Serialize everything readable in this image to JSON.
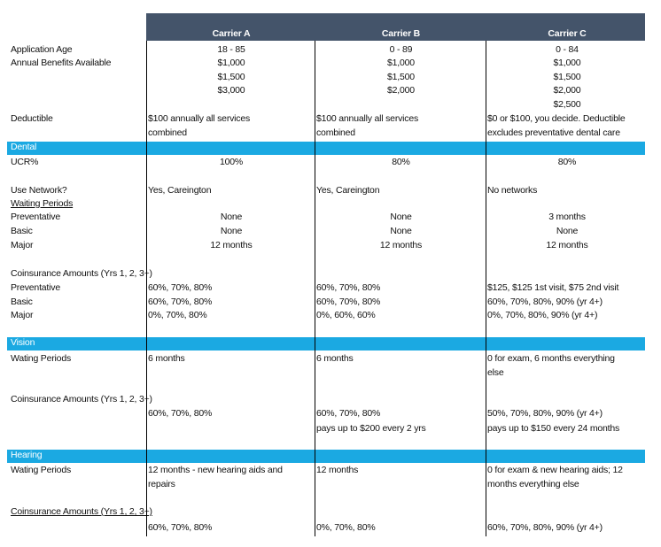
{
  "header": {
    "columns": [
      "Carrier A",
      "Carrier B",
      "Carrier C"
    ]
  },
  "rows": [
    {
      "label": "Application Age",
      "cells": [
        "18 - 85",
        "0 - 89",
        "0 - 84"
      ]
    },
    {
      "label": "Annual Benefits Available",
      "cells": [
        "$1,000",
        "$1,000",
        "$1,000"
      ]
    },
    {
      "cells": [
        "$1,500",
        "$1,500",
        "$1,500"
      ]
    },
    {
      "cells": [
        "$3,000",
        "$2,000",
        "$2,000"
      ]
    },
    {
      "cells": [
        null,
        null,
        "$2,500"
      ]
    },
    {
      "label": "Deductible",
      "cells": [
        [
          "$100 annually all services",
          "combined"
        ],
        [
          "$100 annually all services",
          "combined"
        ],
        [
          "$0 or $100, you decide. Deductible",
          "excludes preventative dental care"
        ]
      ]
    },
    {
      "section": "Dental"
    },
    {
      "label": "UCR%",
      "cells": [
        "100%",
        "80%",
        "80%"
      ]
    },
    {
      "label": "Use Network?",
      "cells": [
        "Yes, Careington",
        "Yes, Careington",
        "No networks"
      ]
    },
    {
      "label": "Waiting Periods",
      "underline": true
    },
    {
      "label": "Preventative",
      "cells": [
        "None",
        "None",
        "3 months"
      ]
    },
    {
      "label": "Basic",
      "cells": [
        "None",
        "None",
        "None"
      ]
    },
    {
      "label": "Major",
      "cells": [
        "12 months",
        "12 months",
        "12 months"
      ]
    },
    {
      "label": "Coinsurance Amounts (Yrs 1, 2, 3+)"
    },
    {
      "label": "Preventative",
      "cells": [
        "60%, 70%, 80%",
        "60%, 70%, 80%",
        "$125, $125 1st visit, $75 2nd visit"
      ]
    },
    {
      "label": "Basic",
      "cells": [
        "60%, 70%, 80%",
        "60%, 70%, 80%",
        "60%, 70%, 80%, 90% (yr 4+)"
      ]
    },
    {
      "label": "Major",
      "cells": [
        "0%, 70%, 80%",
        "0%, 60%, 60%",
        "0%, 70%, 80%, 90% (yr 4+)"
      ]
    },
    {
      "section": "Vision"
    },
    {
      "label": "Wating Periods",
      "cells": [
        "6 months",
        "6 months",
        [
          "0 for exam, 6 months everything",
          "else"
        ]
      ]
    },
    {
      "label": "Coinsurance Amounts (Yrs 1, 2, 3+)"
    },
    {
      "cells": [
        "60%, 70%, 80%",
        "60%, 70%, 80%",
        "50%, 70%, 80%, 90% (yr 4+)"
      ]
    },
    {
      "cells": [
        null,
        "pays up to $200 every 2 yrs",
        "pays up to $150 every 24 months"
      ]
    },
    {
      "section": "Hearing"
    },
    {
      "label": "Wating Periods",
      "cells": [
        [
          "12 months - new hearing aids and",
          "repairs"
        ],
        "12 months",
        [
          "0 for exam & new hearing aids; 12",
          "months everything else"
        ]
      ]
    },
    {
      "label": "Coinsurance Amounts (Yrs 1, 2, 3+)",
      "underline": true
    },
    {
      "cells": [
        "60%, 70%, 80%",
        "0%, 70%, 80%",
        "60%, 70%, 80%, 90% (yr 4+)"
      ]
    }
  ]
}
